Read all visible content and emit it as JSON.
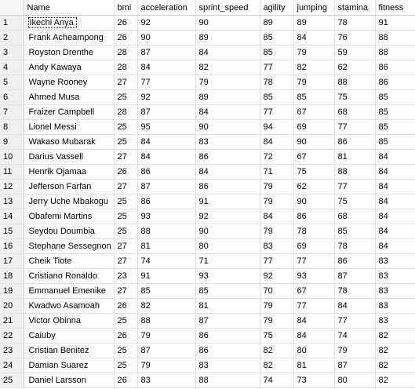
{
  "grid": {
    "columns": [
      "Name",
      "bmi",
      "acceleration",
      "sprint_speed",
      "agility",
      "jumping",
      "stamina",
      "fitness"
    ],
    "selected_row": 1,
    "rows": [
      {
        "n": "1",
        "name": "Ikechi Anya",
        "bmi": "26",
        "acceleration": "92",
        "sprint_speed": "90",
        "agility": "89",
        "jumping": "89",
        "stamina": "78",
        "fitness": "91"
      },
      {
        "n": "2",
        "name": "Frank Acheampong",
        "bmi": "26",
        "acceleration": "90",
        "sprint_speed": "89",
        "agility": "85",
        "jumping": "84",
        "stamina": "76",
        "fitness": "88"
      },
      {
        "n": "3",
        "name": "Royston Drenthe",
        "bmi": "28",
        "acceleration": "87",
        "sprint_speed": "84",
        "agility": "85",
        "jumping": "79",
        "stamina": "59",
        "fitness": "88"
      },
      {
        "n": "4",
        "name": "Andy Kawaya",
        "bmi": "28",
        "acceleration": "84",
        "sprint_speed": "82",
        "agility": "77",
        "jumping": "82",
        "stamina": "62",
        "fitness": "86"
      },
      {
        "n": "5",
        "name": "Wayne Rooney",
        "bmi": "27",
        "acceleration": "77",
        "sprint_speed": "79",
        "agility": "78",
        "jumping": "79",
        "stamina": "88",
        "fitness": "86"
      },
      {
        "n": "6",
        "name": "Ahmed Musa",
        "bmi": "25",
        "acceleration": "92",
        "sprint_speed": "89",
        "agility": "85",
        "jumping": "85",
        "stamina": "75",
        "fitness": "85"
      },
      {
        "n": "7",
        "name": "Fraizer Campbell",
        "bmi": "28",
        "acceleration": "87",
        "sprint_speed": "84",
        "agility": "77",
        "jumping": "67",
        "stamina": "68",
        "fitness": "85"
      },
      {
        "n": "8",
        "name": "Lionel Messi",
        "bmi": "25",
        "acceleration": "95",
        "sprint_speed": "90",
        "agility": "94",
        "jumping": "69",
        "stamina": "77",
        "fitness": "85"
      },
      {
        "n": "9",
        "name": "Wakaso Mubarak",
        "bmi": "25",
        "acceleration": "84",
        "sprint_speed": "83",
        "agility": "84",
        "jumping": "90",
        "stamina": "86",
        "fitness": "85"
      },
      {
        "n": "10",
        "name": "Darius Vassell",
        "bmi": "27",
        "acceleration": "84",
        "sprint_speed": "86",
        "agility": "72",
        "jumping": "67",
        "stamina": "81",
        "fitness": "84"
      },
      {
        "n": "11",
        "name": "Henrik Ojamaa",
        "bmi": "26",
        "acceleration": "86",
        "sprint_speed": "84",
        "agility": "71",
        "jumping": "75",
        "stamina": "88",
        "fitness": "84"
      },
      {
        "n": "12",
        "name": "Jefferson Farfan",
        "bmi": "27",
        "acceleration": "87",
        "sprint_speed": "86",
        "agility": "79",
        "jumping": "62",
        "stamina": "77",
        "fitness": "84"
      },
      {
        "n": "13",
        "name": "Jerry Uche Mbakogu",
        "bmi": "25",
        "acceleration": "86",
        "sprint_speed": "91",
        "agility": "79",
        "jumping": "90",
        "stamina": "75",
        "fitness": "84"
      },
      {
        "n": "14",
        "name": "Obafemi Martins",
        "bmi": "25",
        "acceleration": "93",
        "sprint_speed": "92",
        "agility": "84",
        "jumping": "86",
        "stamina": "68",
        "fitness": "84"
      },
      {
        "n": "15",
        "name": "Seydou Doumbia",
        "bmi": "25",
        "acceleration": "88",
        "sprint_speed": "90",
        "agility": "79",
        "jumping": "78",
        "stamina": "85",
        "fitness": "84"
      },
      {
        "n": "16",
        "name": "Stephane Sessegnon",
        "bmi": "27",
        "acceleration": "81",
        "sprint_speed": "80",
        "agility": "83",
        "jumping": "69",
        "stamina": "78",
        "fitness": "84"
      },
      {
        "n": "17",
        "name": "Cheik Tiote",
        "bmi": "27",
        "acceleration": "74",
        "sprint_speed": "71",
        "agility": "77",
        "jumping": "77",
        "stamina": "86",
        "fitness": "83"
      },
      {
        "n": "18",
        "name": "Cristiano Ronaldo",
        "bmi": "23",
        "acceleration": "91",
        "sprint_speed": "93",
        "agility": "92",
        "jumping": "93",
        "stamina": "87",
        "fitness": "83"
      },
      {
        "n": "19",
        "name": "Emmanuel Emenike",
        "bmi": "27",
        "acceleration": "85",
        "sprint_speed": "85",
        "agility": "70",
        "jumping": "67",
        "stamina": "78",
        "fitness": "83"
      },
      {
        "n": "20",
        "name": "Kwadwo Asamoah",
        "bmi": "26",
        "acceleration": "82",
        "sprint_speed": "81",
        "agility": "79",
        "jumping": "77",
        "stamina": "84",
        "fitness": "83"
      },
      {
        "n": "21",
        "name": "Victor Obinna",
        "bmi": "25",
        "acceleration": "88",
        "sprint_speed": "87",
        "agility": "79",
        "jumping": "84",
        "stamina": "77",
        "fitness": "83"
      },
      {
        "n": "22",
        "name": "Caiuby",
        "bmi": "26",
        "acceleration": "79",
        "sprint_speed": "86",
        "agility": "75",
        "jumping": "84",
        "stamina": "74",
        "fitness": "82"
      },
      {
        "n": "23",
        "name": "Cristian Benitez",
        "bmi": "25",
        "acceleration": "87",
        "sprint_speed": "86",
        "agility": "82",
        "jumping": "80",
        "stamina": "79",
        "fitness": "82"
      },
      {
        "n": "24",
        "name": "Damian Suarez",
        "bmi": "25",
        "acceleration": "79",
        "sprint_speed": "83",
        "agility": "82",
        "jumping": "81",
        "stamina": "87",
        "fitness": "82"
      },
      {
        "n": "25",
        "name": "Daniel Larsson",
        "bmi": "26",
        "acceleration": "83",
        "sprint_speed": "88",
        "agility": "74",
        "jumping": "73",
        "stamina": "80",
        "fitness": "82"
      }
    ]
  }
}
